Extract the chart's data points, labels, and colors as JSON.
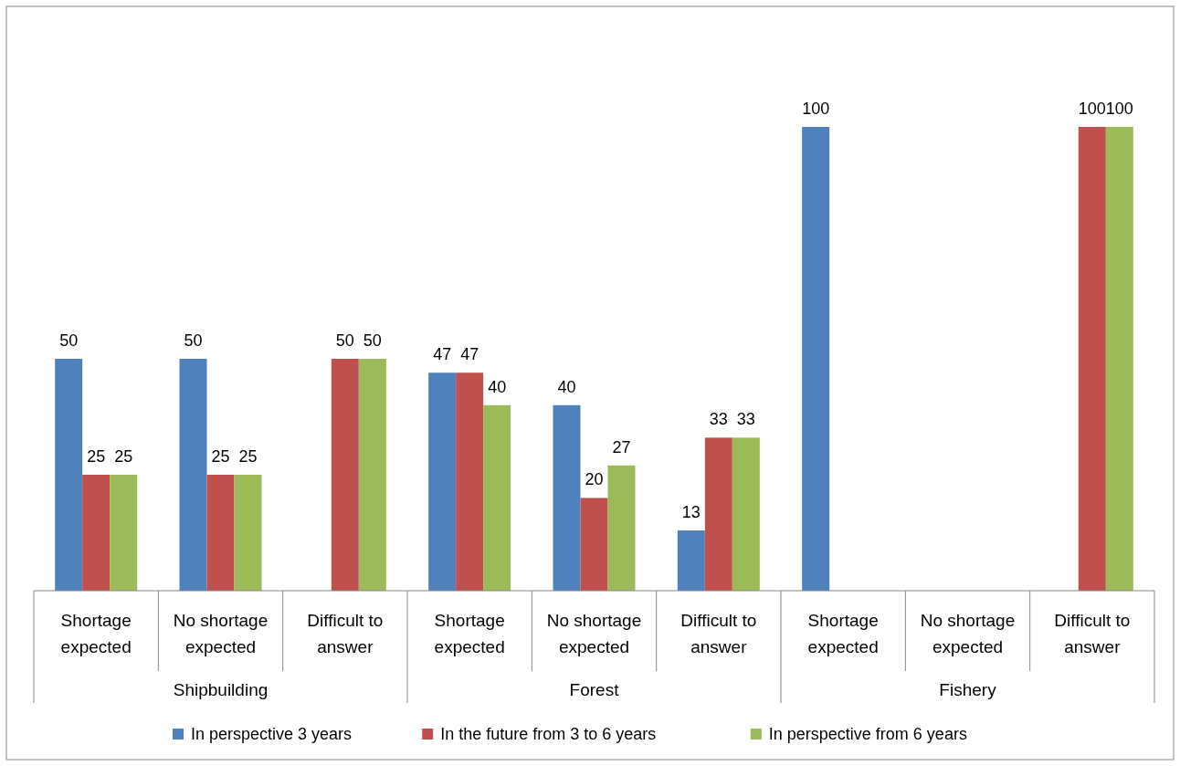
{
  "chart_data": {
    "type": "bar",
    "categories": [
      "Shortage expected",
      "No shortage expected",
      "Difficult to answer",
      "Shortage expected",
      "No shortage expected",
      "Difficult to answer",
      "Shortage expected",
      "No shortage expected",
      "Difficult to answer"
    ],
    "annotations": [
      "Shipbuilding",
      "Forest",
      "Fishery"
    ],
    "series": [
      {
        "name": "In perspective 3 years",
        "color": "#4f81bd",
        "values": [
          50,
          50,
          0,
          47,
          40,
          13,
          100,
          0,
          0
        ],
        "value_labels": [
          "50",
          "50",
          null,
          "47",
          "40",
          "13",
          "100",
          null,
          null
        ]
      },
      {
        "name": "In the future from 3 to 6 years",
        "color": "#c0504d",
        "values": [
          25,
          25,
          50,
          47,
          20,
          33,
          0,
          0,
          100
        ],
        "value_labels": [
          "25",
          "25",
          "50",
          "47",
          "20",
          "33",
          null,
          null,
          "100"
        ]
      },
      {
        "name": "In perspective from 6 years",
        "color": "#9bbb59",
        "values": [
          25,
          25,
          50,
          40,
          27,
          33,
          0,
          0,
          100
        ],
        "value_labels": [
          "25",
          "25",
          "50",
          "40",
          "27",
          "33",
          null,
          null,
          "100"
        ]
      }
    ],
    "legend": "bottom"
  }
}
